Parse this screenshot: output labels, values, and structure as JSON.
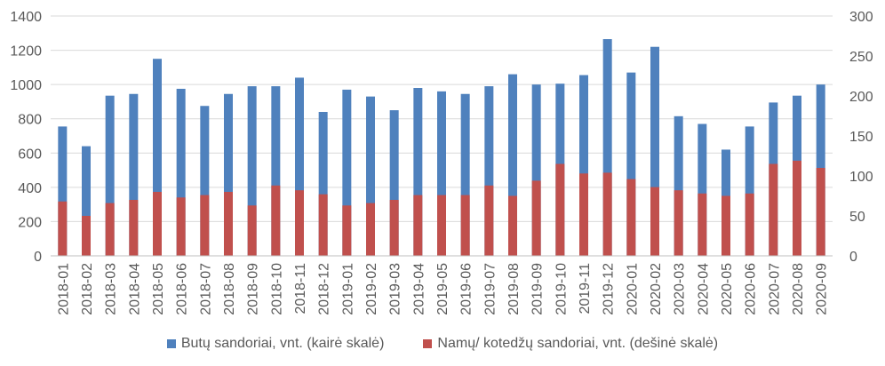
{
  "chart_data": {
    "type": "bar",
    "title": "",
    "categories": [
      "2018-01",
      "2018-02",
      "2018-03",
      "2018-04",
      "2018-05",
      "2018-06",
      "2018-07",
      "2018-08",
      "2018-09",
      "2018-10",
      "2018-11",
      "2018-12",
      "2019-01",
      "2019-02",
      "2019-03",
      "2019-04",
      "2019-05",
      "2019-06",
      "2019-07",
      "2019-08",
      "2019-09",
      "2019-10",
      "2019-11",
      "2019-12",
      "2020-01",
      "2020-02",
      "2020-03",
      "2020-04",
      "2020-05",
      "2020-06",
      "2020-07",
      "2020-08",
      "2020-09"
    ],
    "series": [
      {
        "name": "Butų sandoriai, vnt. (kairė skalė)",
        "axis": "left",
        "color": "#4f81bd",
        "values": [
          755,
          640,
          935,
          945,
          1150,
          975,
          875,
          945,
          990,
          990,
          1040,
          840,
          970,
          930,
          850,
          980,
          960,
          945,
          990,
          1060,
          1000,
          1005,
          1055,
          1265,
          1070,
          1220,
          815,
          770,
          620,
          755,
          895,
          935,
          1000
        ]
      },
      {
        "name": "Namų/ kotedžų sandoriai, vnt. (dešinė skalė)",
        "axis": "right",
        "color": "#c0504d",
        "values": [
          68,
          50,
          66,
          70,
          80,
          73,
          76,
          80,
          63,
          88,
          82,
          77,
          63,
          66,
          70,
          76,
          76,
          76,
          88,
          75,
          94,
          115,
          103,
          104,
          96,
          86,
          82,
          78,
          75,
          78,
          115,
          119,
          110
        ]
      }
    ],
    "y_left": {
      "min": 0,
      "max": 1400,
      "ticks": [
        "0",
        "200",
        "400",
        "600",
        "800",
        "1000",
        "1200",
        "1400"
      ]
    },
    "y_right": {
      "min": 0,
      "max": 300,
      "ticks": [
        "0",
        "50",
        "100",
        "150",
        "200",
        "250",
        "300"
      ]
    },
    "legend_position": "bottom",
    "gridlines": true
  }
}
